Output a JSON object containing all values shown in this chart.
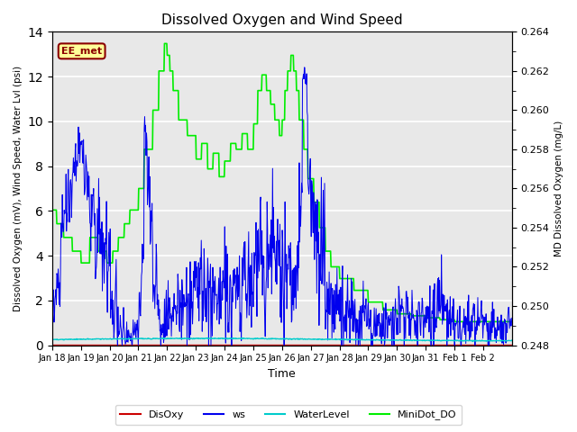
{
  "title": "Dissolved Oxygen and Wind Speed",
  "ylabel_left": "Dissolved Oxygen (mV), Wind Speed, Water Lvl (psi)",
  "ylabel_right": "MD Dissolved Oxygen (mg/L)",
  "xlabel": "Time",
  "ylim_left": [
    0,
    14
  ],
  "ylim_right": [
    0.248,
    0.264
  ],
  "annotation_text": "EE_met",
  "annotation_color": "#8B0000",
  "annotation_bg": "#FFFF99",
  "background_color": "#E8E8E8",
  "grid_color": "white",
  "x_tick_labels": [
    "Jan 18",
    "Jan 19",
    "Jan 20",
    "Jan 21",
    "Jan 22",
    "Jan 23",
    "Jan 24",
    "Jan 25",
    "Jan 26",
    "Jan 27",
    "Jan 28",
    "Jan 29",
    "Jan 30",
    "Jan 31",
    "Feb 1",
    "Feb 2"
  ],
  "disoxy_color": "#CC0000",
  "ws_color": "#0000EE",
  "water_color": "#00CCCC",
  "minidot_color": "#00EE00",
  "num_points": 1000
}
